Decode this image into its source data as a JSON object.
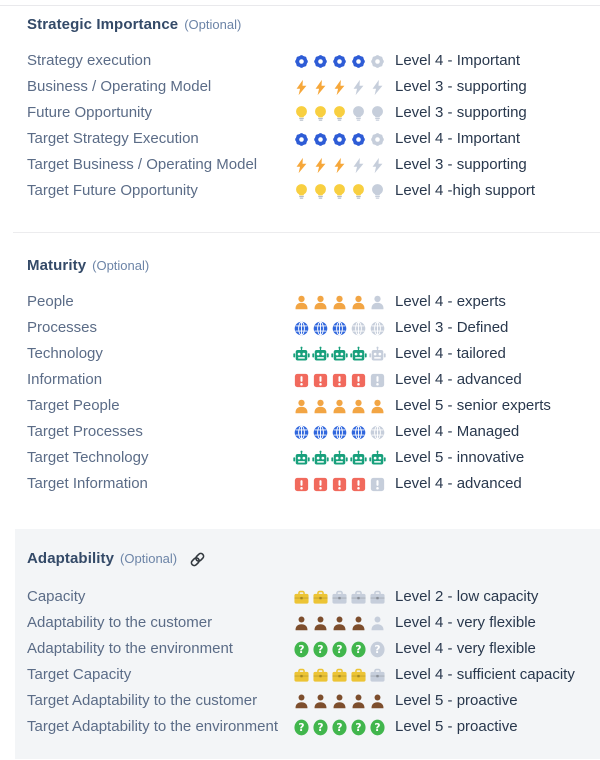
{
  "colors": {
    "section_title": "#344a68",
    "optional_label": "#6c84a7",
    "row_label": "#5b6c87",
    "row_value": "#29384d",
    "panel_background": "#f3f5f7",
    "divider": "#ececee",
    "unfilled_icon": "#c6cedb",
    "link_icon": "#32383e"
  },
  "icon_colors": {
    "gear": "#2e5cd6",
    "lightning-bolt": "#f6a73a",
    "light-bulb": "#f8cf40",
    "person": "#f2a544",
    "globe": "#2f66dd",
    "robot": "#18a07c",
    "exclamation-mark": "#f16a5d",
    "toolbox": "#ecc435",
    "person-dark": "#7d4e2d",
    "question-mark": "#41b64d"
  },
  "rating_scale_max": 5,
  "sections": [
    {
      "title": "Strategic Importance",
      "optional_label": "(Optional)",
      "has_link_icon": false,
      "rows": [
        {
          "label": "Strategy execution",
          "icon": "gear",
          "filled": 4,
          "value": "Level 4 - Important"
        },
        {
          "label": "Business / Operating Model",
          "icon": "lightning-bolt",
          "filled": 3,
          "value": "Level 3 - supporting"
        },
        {
          "label": "Future Opportunity",
          "icon": "light-bulb",
          "filled": 3,
          "value": "Level 3 - supporting"
        },
        {
          "label": "Target Strategy Execution",
          "icon": "gear",
          "filled": 4,
          "value": "Level 4 - Important"
        },
        {
          "label": "Target Business / Operating Model",
          "icon": "lightning-bolt",
          "filled": 3,
          "value": "Level 3 - supporting"
        },
        {
          "label": "Target Future Opportunity",
          "icon": "light-bulb",
          "filled": 4,
          "value": "Level 4 -high support"
        }
      ]
    },
    {
      "title": "Maturity",
      "optional_label": "(Optional)",
      "has_link_icon": false,
      "rows": [
        {
          "label": "People",
          "icon": "person",
          "filled": 4,
          "value": "Level 4 - experts"
        },
        {
          "label": "Processes",
          "icon": "globe",
          "filled": 3,
          "value": "Level 3 - Defined"
        },
        {
          "label": "Technology",
          "icon": "robot",
          "filled": 4,
          "value": "Level 4 - tailored"
        },
        {
          "label": "Information",
          "icon": "exclamation-mark",
          "filled": 4,
          "value": "Level 4 - advanced"
        },
        {
          "label": "Target People",
          "icon": "person",
          "filled": 5,
          "value": "Level 5 - senior experts"
        },
        {
          "label": "Target Processes",
          "icon": "globe",
          "filled": 4,
          "value": "Level 4 - Managed"
        },
        {
          "label": "Target Technology",
          "icon": "robot",
          "filled": 5,
          "value": "Level 5 - innovative"
        },
        {
          "label": "Target Information",
          "icon": "exclamation-mark",
          "filled": 4,
          "value": "Level 4 - advanced"
        }
      ]
    },
    {
      "title": "Adaptability",
      "optional_label": "(Optional)",
      "has_link_icon": true,
      "rows": [
        {
          "label": "Capacity",
          "icon": "toolbox",
          "filled": 2,
          "value": "Level 2 - low capacity"
        },
        {
          "label": "Adaptability to the customer",
          "icon": "person-dark",
          "filled": 4,
          "value": "Level 4 - very flexible"
        },
        {
          "label": "Adaptability to the environment",
          "icon": "question-mark",
          "filled": 4,
          "value": "Level 4 - very flexible"
        },
        {
          "label": "Target Capacity",
          "icon": "toolbox",
          "filled": 4,
          "value": "Level 4 - sufficient capacity"
        },
        {
          "label": "Target Adaptability to the customer",
          "icon": "person-dark",
          "filled": 5,
          "value": "Level 5 - proactive"
        },
        {
          "label": "Target Adaptability to the environment",
          "icon": "question-mark",
          "filled": 5,
          "value": "Level 5 - proactive"
        }
      ]
    }
  ]
}
